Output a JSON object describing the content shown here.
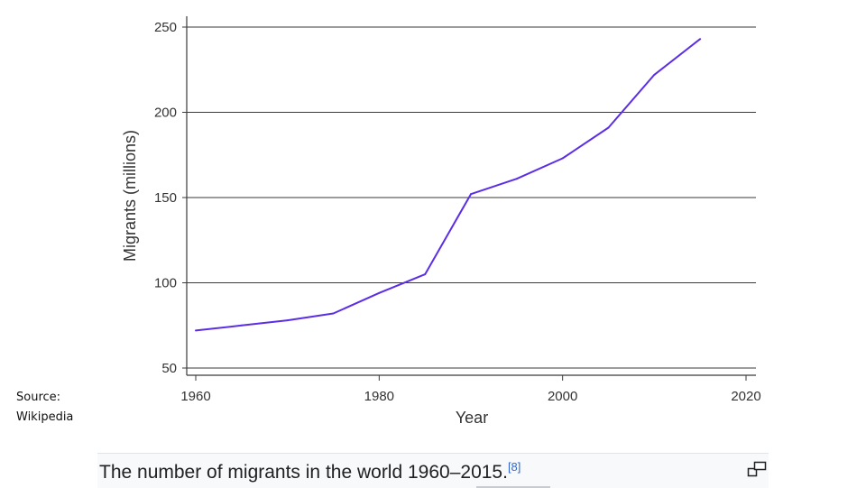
{
  "chart_data": {
    "type": "line",
    "title": "",
    "xlabel": "Year",
    "ylabel": "Migrants (millions)",
    "xlim": [
      1960,
      2020
    ],
    "ylim": [
      50,
      250
    ],
    "x_ticks": [
      1960,
      1980,
      2000,
      2020
    ],
    "y_ticks": [
      50,
      100,
      150,
      200,
      250
    ],
    "grid": "horizontal",
    "series": [
      {
        "color": "#5b2ee6",
        "x": [
          1960,
          1965,
          1970,
          1975,
          1980,
          1985,
          1990,
          1995,
          2000,
          2005,
          2010,
          2015
        ],
        "y": [
          72,
          75,
          78,
          82,
          94,
          105,
          152,
          161,
          173,
          191,
          222,
          243
        ]
      }
    ]
  },
  "source_note": "Source:\nWikipedia",
  "caption": {
    "text": "The number of migrants in the world 1960–2015.",
    "ref": "[8]",
    "icon": "enlarge-icon"
  }
}
